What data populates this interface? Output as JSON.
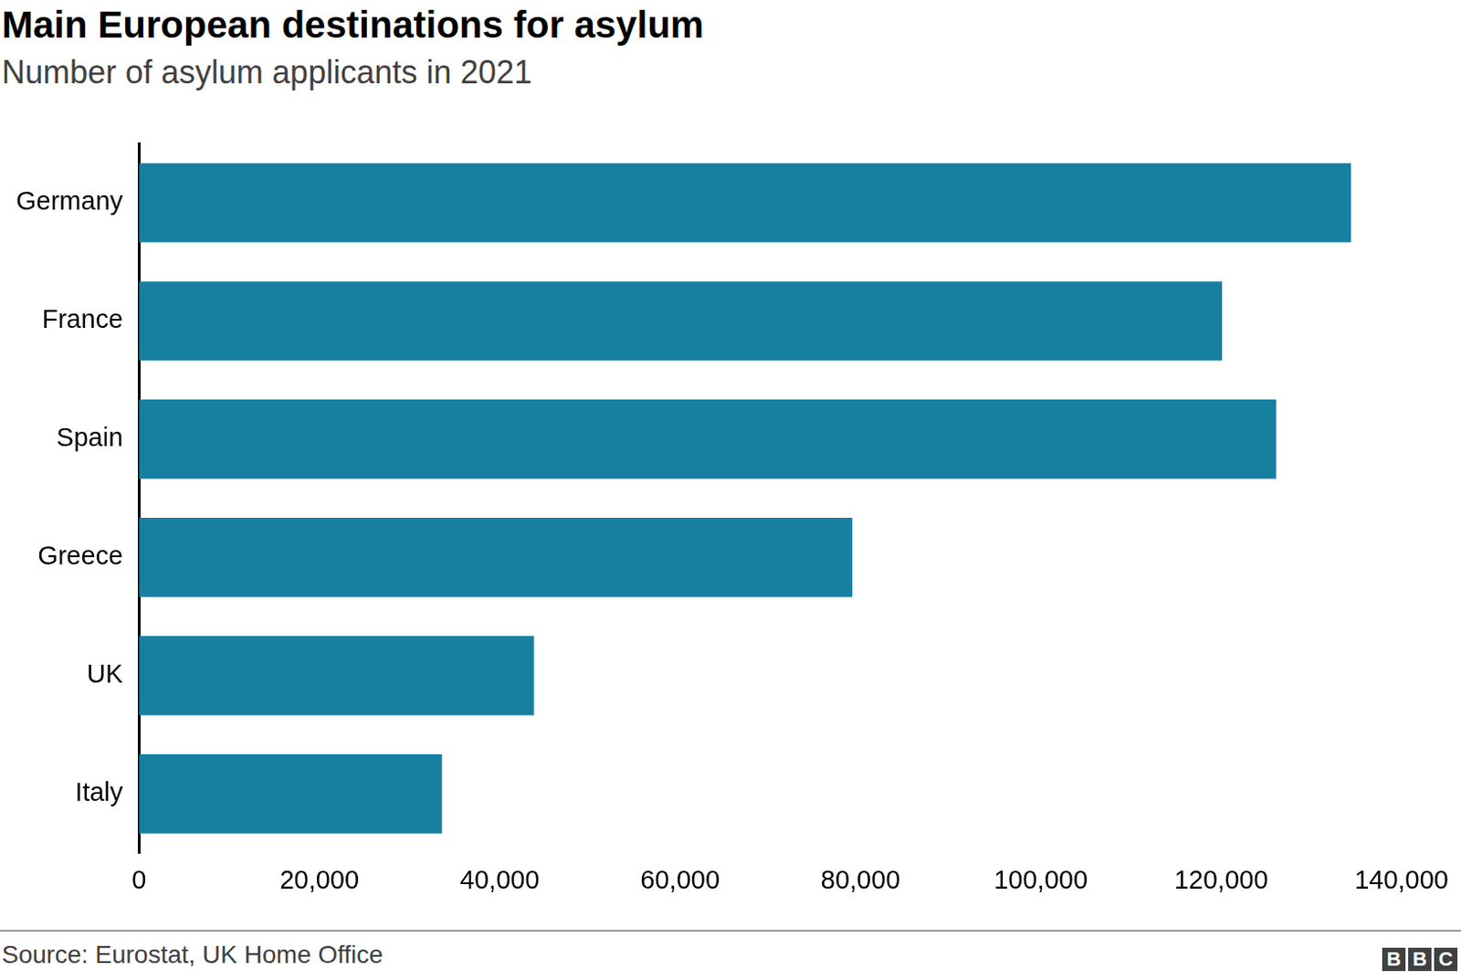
{
  "chart_data": {
    "type": "bar",
    "orientation": "horizontal",
    "title": "Main European destinations for asylum",
    "subtitle": "Number of asylum applicants in 2021",
    "source": "Source: Eurostat, UK Home Office",
    "credit": "BBC",
    "categories": [
      "Germany",
      "France",
      "Spain",
      "Greece",
      "UK",
      "Italy"
    ],
    "values": [
      134400,
      120100,
      126100,
      79100,
      43800,
      33600
    ],
    "color": "#1780a1",
    "xlim": [
      0,
      140000
    ],
    "xticks": [
      0,
      {
        "value": 20000,
        "label": "20,000"
      },
      {
        "value": 40000,
        "label": "40,000"
      },
      {
        "value": 60000,
        "label": "60,000"
      },
      {
        "value": 80000,
        "label": "80,000"
      },
      {
        "value": 100000,
        "label": "100,000"
      },
      {
        "value": 120000,
        "label": "120,000"
      },
      {
        "value": 140000,
        "label": "140,000"
      }
    ],
    "grid": false
  }
}
